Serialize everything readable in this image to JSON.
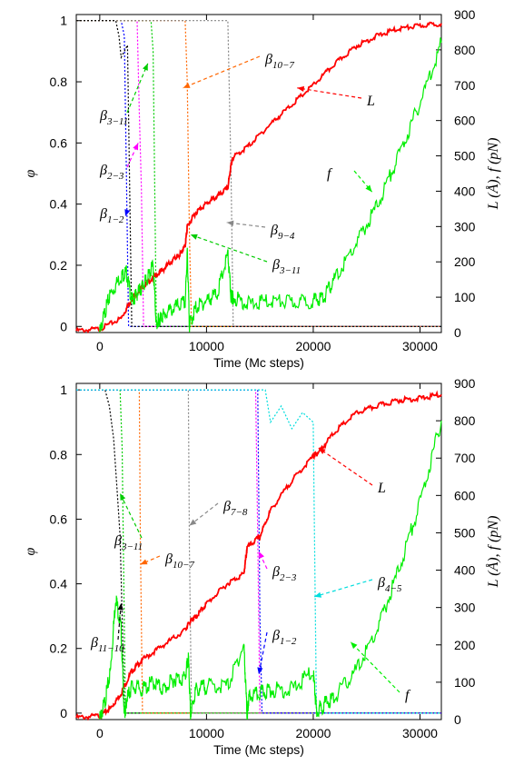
{
  "chart_data": [
    {
      "type": "line",
      "panel": "top",
      "xlabel": "Time   (Mc steps)",
      "ylabel_left": "φ",
      "ylabel_right": "L (Å),  f (pN)",
      "xlim": [
        -2200,
        32000
      ],
      "ylim_left": [
        -0.02,
        1.02
      ],
      "ylim_right": [
        0,
        900
      ],
      "xticks": [
        0,
        10000,
        20000,
        30000
      ],
      "yticks_left": [
        0,
        0.2,
        0.4,
        0.6,
        0.8,
        1
      ],
      "yticks_right": [
        0,
        100,
        200,
        300,
        400,
        500,
        600,
        700,
        800,
        900
      ],
      "colors": {
        "L": "#ff0000",
        "f": "#00ee00",
        "b1_2": "#0000ff",
        "b2_3": "#ff00ff",
        "b3_11": "#00cc00",
        "b10_7": "#ff6600",
        "b9_4": "#888888",
        "b11_10": "#000000"
      },
      "series": [
        {
          "name": "L",
          "axis": "right",
          "color": "#ff0000",
          "x": [
            -2200,
            0,
            2000,
            3000,
            4000,
            5000,
            6000,
            7000,
            7500,
            8000,
            8200,
            9000,
            10000,
            11000,
            12000,
            12300,
            12500,
            14000,
            16000,
            18000,
            20000,
            22000,
            24000,
            26000,
            28000,
            30000,
            32000
          ],
          "y": [
            5,
            10,
            40,
            95,
            130,
            155,
            180,
            210,
            220,
            245,
            300,
            340,
            365,
            385,
            410,
            475,
            495,
            530,
            590,
            645,
            700,
            760,
            810,
            840,
            860,
            868,
            875
          ]
        },
        {
          "name": "f",
          "axis": "right",
          "color": "#00ee00",
          "x": [
            0,
            500,
            1000,
            2000,
            2500,
            3000,
            3500,
            4000,
            4500,
            5000,
            5300,
            5600,
            6000,
            7000,
            8000,
            8200,
            8400,
            9000,
            10000,
            11000,
            12000,
            12300,
            12500,
            14000,
            16000,
            18000,
            20000,
            21000,
            22000,
            24000,
            26000,
            28000,
            30000,
            32000
          ],
          "y": [
            0,
            60,
            110,
            160,
            170,
            90,
            110,
            130,
            155,
            190,
            20,
            40,
            50,
            70,
            85,
            230,
            20,
            70,
            90,
            110,
            220,
            100,
            100,
            80,
            90,
            85,
            90,
            100,
            150,
            250,
            360,
            500,
            650,
            820
          ]
        }
      ],
      "phi_curves": [
        {
          "name": "β1-2",
          "color": "#0000ff",
          "x": [
            -2200,
            2000,
            2300,
            2500,
            2700,
            32000
          ],
          "y": [
            1,
            1,
            0.95,
            0.5,
            0,
            0
          ]
        },
        {
          "name": "β2-3",
          "color": "#ff00ff",
          "x": [
            -2200,
            3500,
            3700,
            3900,
            4100,
            32000
          ],
          "y": [
            1,
            1,
            0.7,
            0.45,
            0,
            0
          ]
        },
        {
          "name": "β3-11",
          "color": "#00cc00",
          "x": [
            -2200,
            4800,
            5000,
            5300,
            32000
          ],
          "y": [
            1,
            1,
            0.9,
            0,
            0
          ]
        },
        {
          "name": "β10-7",
          "color": "#ff6600",
          "x": [
            -2200,
            8000,
            8200,
            8400,
            8600,
            32000
          ],
          "y": [
            1,
            1,
            0.8,
            0.3,
            0,
            0
          ]
        },
        {
          "name": "β9-4",
          "color": "#888888",
          "x": [
            -2200,
            12000,
            12300,
            12500,
            32000
          ],
          "y": [
            1,
            1,
            0.5,
            0,
            0
          ]
        },
        {
          "name": "β11-10",
          "color": "#000000",
          "x": [
            -2200,
            1500,
            1800,
            2000,
            2600,
            3000,
            32000
          ],
          "y": [
            1,
            1,
            0.95,
            0.88,
            0.92,
            0,
            0
          ]
        }
      ],
      "annotations": [
        {
          "text": "β",
          "sub": "10−7",
          "target": [
            7800,
            0.78
          ]
        },
        {
          "text": "β",
          "sub": "3−11",
          "target": [
            4500,
            0.86
          ]
        },
        {
          "text": "L",
          "target": [
            18500,
            0.78
          ]
        },
        {
          "text": "β",
          "sub": "2−3",
          "target": [
            3600,
            0.6
          ]
        },
        {
          "text": "f",
          "target": [
            25500,
            0.44
          ]
        },
        {
          "text": "β",
          "sub": "1−2",
          "target": [
            2400,
            0.36
          ]
        },
        {
          "text": "β",
          "sub": "9−4",
          "target": [
            11900,
            0.34
          ]
        },
        {
          "text": "β",
          "sub": "3−11",
          "target": [
            8500,
            0.3
          ]
        }
      ]
    },
    {
      "type": "line",
      "panel": "bottom",
      "xlabel": "Time   (Mc steps)",
      "ylabel_left": "φ",
      "ylabel_right": "L (Å),  f (pN)",
      "xlim": [
        -2200,
        32000
      ],
      "ylim_left": [
        -0.02,
        1.02
      ],
      "ylim_right": [
        0,
        900
      ],
      "xticks": [
        0,
        10000,
        20000,
        30000
      ],
      "yticks_left": [
        0,
        0.2,
        0.4,
        0.6,
        0.8,
        1
      ],
      "yticks_right": [
        0,
        100,
        200,
        300,
        400,
        500,
        600,
        700,
        800,
        900
      ],
      "colors": {
        "L": "#ff0000",
        "f": "#00ee00",
        "b11_10": "#000000",
        "b3_11": "#00cc00",
        "b10_7": "#ff6600",
        "b7_8": "#888888",
        "b2_3": "#ff00ff",
        "b1_2": "#0000ff",
        "b4_5": "#00dddd"
      },
      "series": [
        {
          "name": "L",
          "axis": "right",
          "color": "#ff0000",
          "x": [
            -2200,
            0,
            1000,
            2000,
            3000,
            4000,
            6000,
            8000,
            8500,
            9000,
            10000,
            12000,
            13500,
            13800,
            15000,
            16000,
            18000,
            20000,
            20500,
            22000,
            24000,
            26000,
            28000,
            30000,
            32000
          ],
          "y": [
            5,
            10,
            30,
            70,
            130,
            160,
            200,
            240,
            265,
            275,
            310,
            365,
            390,
            460,
            490,
            560,
            640,
            705,
            715,
            770,
            820,
            840,
            855,
            860,
            870
          ]
        },
        {
          "name": "f",
          "axis": "right",
          "color": "#00ee00",
          "x": [
            0,
            500,
            1000,
            1500,
            2000,
            2300,
            2500,
            3000,
            4000,
            5000,
            6000,
            7000,
            8000,
            8300,
            8500,
            9000,
            10000,
            12000,
            13500,
            13800,
            14000,
            15000,
            16000,
            18000,
            20000,
            20300,
            21000,
            22000,
            24000,
            26000,
            28000,
            30000,
            32000
          ],
          "y": [
            0,
            50,
            130,
            330,
            240,
            10,
            50,
            90,
            80,
            100,
            80,
            110,
            110,
            170,
            10,
            80,
            90,
            90,
            200,
            10,
            60,
            70,
            80,
            80,
            130,
            20,
            40,
            60,
            130,
            240,
            400,
            580,
            800
          ]
        }
      ],
      "phi_curves": [
        {
          "name": "β11-10",
          "color": "#000000",
          "x": [
            -2200,
            500,
            900,
            1300,
            1600,
            1900,
            2100,
            2300,
            32000
          ],
          "y": [
            1,
            1,
            0.95,
            0.85,
            0.7,
            0.55,
            0.3,
            0,
            0
          ]
        },
        {
          "name": "β3-11",
          "color": "#00cc00",
          "x": [
            -2200,
            1900,
            2100,
            2400,
            32000
          ],
          "y": [
            1,
            1,
            0.82,
            0,
            0
          ]
        },
        {
          "name": "β10-7",
          "color": "#ff6600",
          "x": [
            -2200,
            3700,
            3800,
            4000,
            32000
          ],
          "y": [
            1,
            1,
            0.55,
            0,
            0
          ]
        },
        {
          "name": "β7-8",
          "color": "#888888",
          "x": [
            -2200,
            8300,
            8400,
            8600,
            32000
          ],
          "y": [
            1,
            1,
            0.5,
            0,
            0
          ]
        },
        {
          "name": "β2-3",
          "color": "#ff00ff",
          "x": [
            -2200,
            14600,
            14800,
            15000,
            32000
          ],
          "y": [
            1,
            1,
            0.55,
            0,
            0
          ]
        },
        {
          "name": "β1-2",
          "color": "#0000ff",
          "x": [
            -2200,
            14800,
            15000,
            15200,
            32000
          ],
          "y": [
            1,
            1,
            0.3,
            0,
            0
          ]
        },
        {
          "name": "β4-5",
          "color": "#00dddd",
          "x": [
            -2200,
            15500,
            16000,
            17000,
            18000,
            19000,
            20000,
            20300,
            32000
          ],
          "y": [
            1,
            1,
            0.9,
            0.95,
            0.88,
            0.93,
            0.9,
            0,
            0
          ]
        }
      ],
      "annotations": [
        {
          "text": "L",
          "target": [
            20500,
            0.82
          ]
        },
        {
          "text": "β",
          "sub": "7−8",
          "target": [
            8400,
            0.58
          ]
        },
        {
          "text": "β",
          "sub": "3−11",
          "target": [
            1900,
            0.68
          ]
        },
        {
          "text": "β",
          "sub": "10−7",
          "target": [
            3800,
            0.46
          ]
        },
        {
          "text": "β",
          "sub": "2−3",
          "target": [
            14900,
            0.5
          ]
        },
        {
          "text": "β",
          "sub": "4−5",
          "target": [
            20100,
            0.36
          ]
        },
        {
          "text": "β",
          "sub": "11−10",
          "target": [
            2000,
            0.34
          ]
        },
        {
          "text": "β",
          "sub": "1−2",
          "target": [
            14900,
            0.12
          ]
        },
        {
          "text": "f",
          "target": [
            23500,
            0.22
          ]
        }
      ]
    }
  ]
}
